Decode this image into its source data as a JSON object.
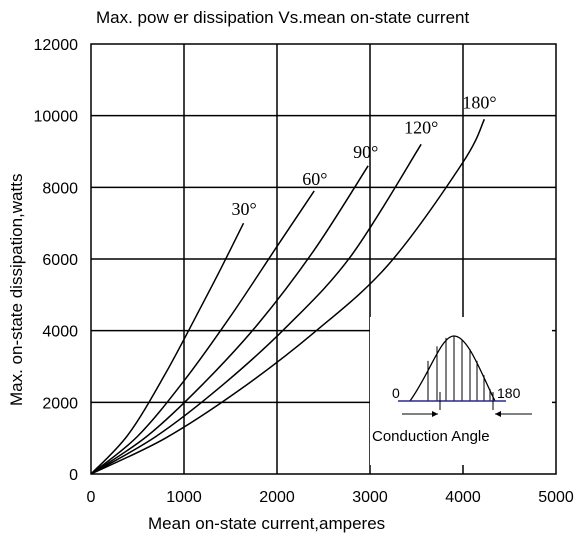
{
  "chart_data": {
    "type": "line",
    "title": "Max. pow er dissipation Vs.mean on-state current",
    "xlabel": "Mean on-state current,amperes",
    "ylabel": "Max. on-state dissipation,watts",
    "xlim": [
      0,
      5000
    ],
    "ylim": [
      0,
      12000
    ],
    "xticks": [
      0,
      1000,
      2000,
      3000,
      4000,
      5000
    ],
    "yticks": [
      0,
      2000,
      4000,
      6000,
      8000,
      10000,
      12000
    ],
    "xtick_labels": [
      "0",
      "1000",
      "2000",
      "3000",
      "4000",
      "5000"
    ],
    "ytick_labels": [
      "0",
      "2000",
      "4000",
      "6000",
      "8000",
      "10000",
      "12000"
    ],
    "grid": true,
    "series": [
      {
        "name": "30°",
        "x": [
          0,
          400,
          800,
          1200,
          1400,
          1640
        ],
        "y": [
          0,
          1100,
          2800,
          4750,
          5750,
          7000
        ]
      },
      {
        "name": "60°",
        "x": [
          0,
          500,
          1000,
          1500,
          2000,
          2400
        ],
        "y": [
          0,
          1050,
          2600,
          4400,
          6350,
          7900
        ]
      },
      {
        "name": "90°",
        "x": [
          0,
          600,
          1200,
          1800,
          2400,
          2980
        ],
        "y": [
          0,
          1050,
          2500,
          4200,
          6250,
          8600
        ]
      },
      {
        "name": "120°",
        "x": [
          0,
          700,
          1400,
          2100,
          2800,
          3550
        ],
        "y": [
          0,
          1050,
          2450,
          4100,
          6100,
          9200
        ]
      },
      {
        "name": "180°",
        "x": [
          0,
          800,
          1600,
          2400,
          3200,
          4000,
          4230
        ],
        "y": [
          0,
          1000,
          2350,
          3950,
          5850,
          8700,
          9900
        ]
      }
    ],
    "inset": {
      "left_label": "0",
      "right_label": "180",
      "caption": "Conduction Angle"
    }
  }
}
